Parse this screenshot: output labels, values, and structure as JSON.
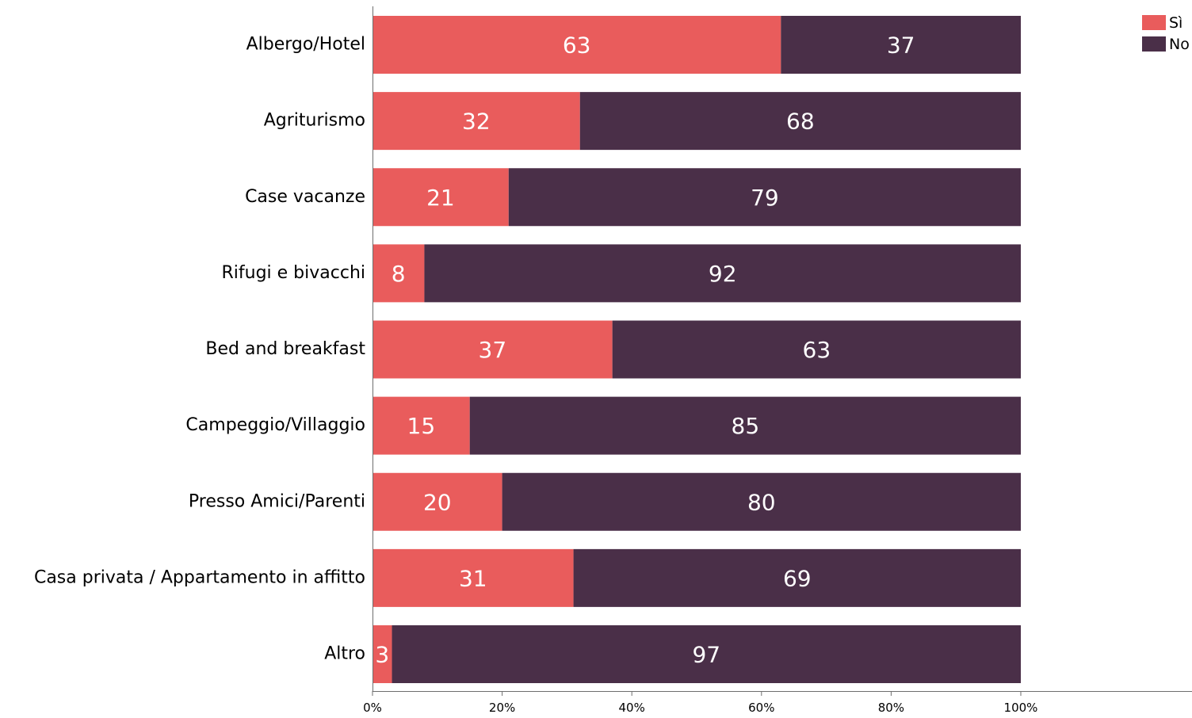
{
  "chart_data": {
    "type": "bar",
    "orientation": "horizontal",
    "stacked": true,
    "categories": [
      "Albergo/Hotel",
      "Agriturismo",
      "Case vacanze",
      "Rifugi e bivacchi",
      "Bed and breakfast",
      "Campeggio/Villaggio",
      "Presso Amici/Parenti",
      "Casa privata / Appartamento in affitto",
      "Altro"
    ],
    "series": [
      {
        "name": "Sì",
        "color": "#e95c5c",
        "values": [
          63,
          32,
          21,
          8,
          37,
          15,
          20,
          31,
          3
        ]
      },
      {
        "name": "No",
        "color": "#4a2f48",
        "values": [
          37,
          68,
          79,
          92,
          63,
          85,
          80,
          69,
          97
        ]
      }
    ],
    "xlim": [
      0,
      100
    ],
    "x_ticks": [
      "0%",
      "20%",
      "40%",
      "60%",
      "80%",
      "100%"
    ],
    "grid": false,
    "legend_position": "top-right"
  }
}
